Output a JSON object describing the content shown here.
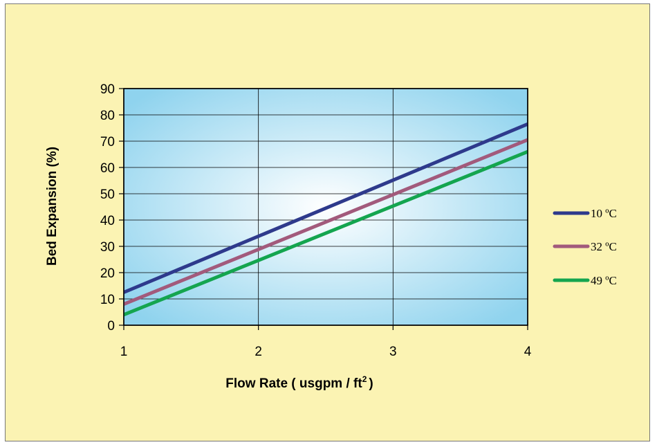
{
  "chart_data": {
    "type": "line",
    "xlabel": "Flow Rate ( usgpm / ft",
    "xlabel_sup": "2",
    "xlabel_end": ")",
    "ylabel": "Bed Expansion (%)",
    "xlim": [
      1,
      4
    ],
    "ylim": [
      0,
      90
    ],
    "x_ticks": [
      "1",
      "2",
      "3",
      "4"
    ],
    "y_ticks": [
      "0",
      "10",
      "20",
      "30",
      "40",
      "50",
      "60",
      "70",
      "80",
      "90"
    ],
    "grid": true,
    "legend_position": "right",
    "plot_background": "#8fd3ee",
    "frame_background": "#fbf3b3",
    "series": [
      {
        "name": "10 ºC",
        "color": "#2e3a8c",
        "x": [
          1,
          4
        ],
        "y": [
          12.5,
          76.5
        ]
      },
      {
        "name": "32 ºC",
        "color": "#a25a7c",
        "x": [
          1,
          4
        ],
        "y": [
          8,
          70.5
        ]
      },
      {
        "name": "49 ºC",
        "color": "#14a54f",
        "x": [
          1,
          4
        ],
        "y": [
          4,
          66
        ]
      }
    ]
  }
}
